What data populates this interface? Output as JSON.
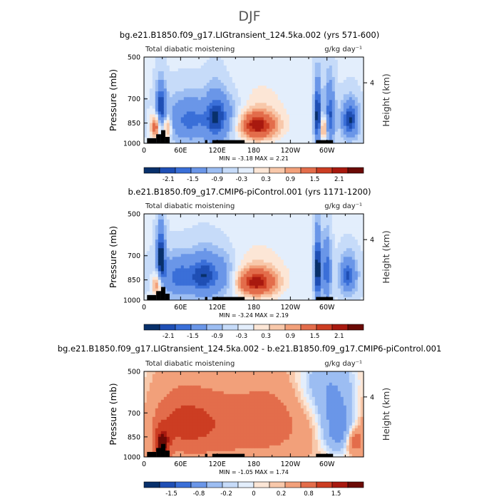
{
  "page_title": "DJF",
  "colors": {
    "cool": [
      "#08306b",
      "#1f4fb5",
      "#3a6fd8",
      "#6a96e8",
      "#9cbdf2",
      "#c6dbf9",
      "#e3eefc"
    ],
    "warm": [
      "#fce6d6",
      "#f8c8aa",
      "#f2a07a",
      "#e36d4b",
      "#cc3d22",
      "#a8190f",
      "#6b0a05"
    ],
    "terrain": "#000000"
  },
  "chart_data": [
    {
      "type": "heatmap",
      "title": "bg.e21.B1850.f09_g17.LIGtransient_124.5ka.002 (yrs 571-600)",
      "left_label": "Total diabatic moistening",
      "right_label": "g/kg day⁻¹",
      "ylabel": "Pressure (mb)",
      "y2label": "Height (km)",
      "y_ticks": [
        "500",
        "700",
        "850",
        "1000"
      ],
      "y2_ticks": [
        "4"
      ],
      "x_ticks": [
        "0",
        "60E",
        "120E",
        "180",
        "120W",
        "60W"
      ],
      "stats": "MIN = -3.18   MAX = 2.21",
      "colorbar_ticks": [
        "-2.1",
        "-1.5",
        "-0.9",
        "-0.3",
        "0.3",
        "0.9",
        "1.5",
        "2.1"
      ],
      "colorbar_levels": [
        -2.4,
        -2.1,
        -1.8,
        -1.5,
        -1.2,
        -0.9,
        -0.6,
        -0.3,
        0,
        0.3,
        0.6,
        0.9,
        1.2,
        1.5,
        1.8,
        2.1,
        2.4
      ],
      "xlim": [
        0,
        360
      ],
      "ylim": [
        1000,
        500
      ],
      "features": [
        {
          "lon": 20,
          "p": 870,
          "amp": 2.0,
          "wlon": 6,
          "wp": 60
        },
        {
          "lon": 28,
          "p": 760,
          "amp": -1.8,
          "wlon": 6,
          "wp": 110
        },
        {
          "lon": 38,
          "p": 880,
          "amp": 1.6,
          "wlon": 5,
          "wp": 60
        },
        {
          "lon": 75,
          "p": 830,
          "amp": -1.4,
          "wlon": 28,
          "wp": 110
        },
        {
          "lon": 118,
          "p": 810,
          "amp": -1.2,
          "wlon": 12,
          "wp": 130
        },
        {
          "lon": 140,
          "p": 820,
          "amp": -0.9,
          "wlon": 18,
          "wp": 110
        },
        {
          "lon": 185,
          "p": 870,
          "amp": 2.2,
          "wlon": 24,
          "wp": 70
        },
        {
          "lon": 190,
          "p": 720,
          "amp": 0.3,
          "wlon": 40,
          "wp": 140
        },
        {
          "lon": 285,
          "p": 800,
          "amp": -2.2,
          "wlon": 4,
          "wp": 150
        },
        {
          "lon": 295,
          "p": 890,
          "amp": 1.5,
          "wlon": 4,
          "wp": 60
        },
        {
          "lon": 305,
          "p": 800,
          "amp": -1.6,
          "wlon": 6,
          "wp": 150
        },
        {
          "lon": 338,
          "p": 830,
          "amp": -1.9,
          "wlon": 10,
          "wp": 90
        }
      ],
      "background": -0.25,
      "terrain": [
        {
          "lon": [
            5,
            20
          ],
          "p": 960
        },
        {
          "lon": [
            20,
            28
          ],
          "p": 930
        },
        {
          "lon": [
            28,
            35
          ],
          "p": 900
        },
        {
          "lon": [
            35,
            42
          ],
          "p": 950
        },
        {
          "lon": [
            100,
            104
          ],
          "p": 975
        },
        {
          "lon": [
            112,
            165
          ],
          "p": 975
        },
        {
          "lon": [
            282,
            310
          ],
          "p": 975
        }
      ]
    },
    {
      "type": "heatmap",
      "title": "b.e21.B1850.f09_g17.CMIP6-piControl.001 (yrs 1171-1200)",
      "left_label": "Total diabatic moistening",
      "right_label": "g/kg day⁻¹",
      "ylabel": "Pressure (mb)",
      "y2label": "Height (km)",
      "y_ticks": [
        "500",
        "700",
        "850",
        "1000"
      ],
      "y2_ticks": [
        "4"
      ],
      "x_ticks": [
        "0",
        "60E",
        "120E",
        "180",
        "120W",
        "60W"
      ],
      "stats": "MIN = -3.24   MAX = 2.19",
      "colorbar_ticks": [
        "-2.1",
        "-1.5",
        "-0.9",
        "-0.3",
        "0.3",
        "0.9",
        "1.5",
        "2.1"
      ],
      "colorbar_levels": [
        -2.4,
        -2.1,
        -1.8,
        -1.5,
        -1.2,
        -0.9,
        -0.6,
        -0.3,
        0,
        0.3,
        0.6,
        0.9,
        1.2,
        1.5,
        1.8,
        2.1,
        2.4
      ],
      "xlim": [
        0,
        360
      ],
      "ylim": [
        1000,
        500
      ],
      "features": [
        {
          "lon": 22,
          "p": 880,
          "amp": 1.6,
          "wlon": 6,
          "wp": 60
        },
        {
          "lon": 28,
          "p": 700,
          "amp": -2.0,
          "wlon": 5,
          "wp": 120
        },
        {
          "lon": 60,
          "p": 830,
          "amp": -1.5,
          "wlon": 25,
          "wp": 100
        },
        {
          "lon": 100,
          "p": 820,
          "amp": -1.3,
          "wlon": 14,
          "wp": 110
        },
        {
          "lon": 130,
          "p": 820,
          "amp": -1.0,
          "wlon": 16,
          "wp": 110
        },
        {
          "lon": 185,
          "p": 870,
          "amp": 2.1,
          "wlon": 24,
          "wp": 70
        },
        {
          "lon": 190,
          "p": 740,
          "amp": 0.3,
          "wlon": 40,
          "wp": 140
        },
        {
          "lon": 285,
          "p": 780,
          "amp": -2.3,
          "wlon": 4,
          "wp": 160
        },
        {
          "lon": 300,
          "p": 790,
          "amp": -1.6,
          "wlon": 5,
          "wp": 140
        },
        {
          "lon": 335,
          "p": 820,
          "amp": -1.6,
          "wlon": 10,
          "wp": 90
        }
      ],
      "background": -0.25,
      "terrain": [
        {
          "lon": [
            5,
            20
          ],
          "p": 960
        },
        {
          "lon": [
            20,
            28
          ],
          "p": 930
        },
        {
          "lon": [
            28,
            35
          ],
          "p": 900
        },
        {
          "lon": [
            35,
            42
          ],
          "p": 950
        },
        {
          "lon": [
            100,
            104
          ],
          "p": 975
        },
        {
          "lon": [
            112,
            165
          ],
          "p": 975
        },
        {
          "lon": [
            282,
            310
          ],
          "p": 975
        }
      ]
    },
    {
      "type": "heatmap",
      "title": "bg.e21.B1850.f09_g17.LIGtransient_124.5ka.002 - b.e21.B1850.f09_g17.CMIP6-piControl.001",
      "left_label": "Total diabatic moistening",
      "right_label": "g/kg day⁻¹",
      "ylabel": "Pressure (mb)",
      "y2label": "Height (km)",
      "y_ticks": [
        "500",
        "700",
        "850",
        "1000"
      ],
      "y2_ticks": [
        "4"
      ],
      "x_ticks": [
        "0",
        "60E",
        "120E",
        "180",
        "120W",
        "60W"
      ],
      "stats": "MIN = -1.05   MAX = 1.74",
      "colorbar_ticks": [
        "-1.5",
        "-0.8",
        "-0.2",
        "0",
        "0.2",
        "0.8",
        "1.5"
      ],
      "colorbar_levels": [
        -2.0,
        -1.5,
        -1.2,
        -0.8,
        -0.5,
        -0.2,
        -0.1,
        0,
        0.1,
        0.2,
        0.5,
        0.8,
        1.2,
        1.5,
        2.0
      ],
      "xlim": [
        0,
        360
      ],
      "ylim": [
        1000,
        500
      ],
      "features": [
        {
          "lon": 30,
          "p": 900,
          "amp": 1.3,
          "wlon": 8,
          "wp": 70
        },
        {
          "lon": 60,
          "p": 760,
          "amp": 0.6,
          "wlon": 40,
          "wp": 150
        },
        {
          "lon": 140,
          "p": 780,
          "amp": 0.45,
          "wlon": 60,
          "wp": 180
        },
        {
          "lon": 220,
          "p": 740,
          "amp": 0.35,
          "wlon": 40,
          "wp": 160
        },
        {
          "lon": 300,
          "p": 560,
          "amp": -0.6,
          "wlon": 35,
          "wp": 120
        },
        {
          "lon": 320,
          "p": 800,
          "amp": -0.9,
          "wlon": 20,
          "wp": 120
        },
        {
          "lon": 345,
          "p": 880,
          "amp": 0.7,
          "wlon": 10,
          "wp": 70
        }
      ],
      "background": 0.15,
      "terrain": [
        {
          "lon": [
            5,
            20
          ],
          "p": 960
        },
        {
          "lon": [
            20,
            28
          ],
          "p": 930
        },
        {
          "lon": [
            28,
            35
          ],
          "p": 900
        },
        {
          "lon": [
            35,
            42
          ],
          "p": 950
        },
        {
          "lon": [
            100,
            104
          ],
          "p": 975
        },
        {
          "lon": [
            112,
            165
          ],
          "p": 975
        },
        {
          "lon": [
            282,
            310
          ],
          "p": 975
        }
      ]
    }
  ]
}
